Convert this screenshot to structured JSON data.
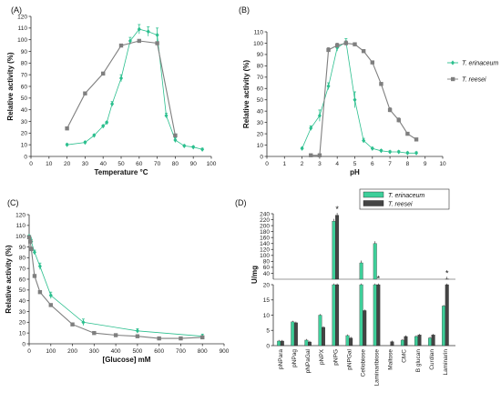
{
  "colors": {
    "erinaceum": "#2bbf8e",
    "reesei": "#7f7f7f",
    "erinaceum_bar": "#3ecf9a",
    "reesei_bar": "#444444"
  },
  "chart_data": [
    {
      "id": "A",
      "panel_label": "(A)",
      "type": "line",
      "xlabel": "Temperature °C",
      "ylabel": "Relative activity (%)",
      "xlim": [
        0,
        100
      ],
      "ylim": [
        0,
        120
      ],
      "xticks": [
        0,
        10,
        20,
        30,
        40,
        50,
        60,
        70,
        80,
        90,
        100
      ],
      "yticks": [
        0,
        10,
        20,
        30,
        40,
        50,
        60,
        70,
        80,
        90,
        100,
        110,
        120
      ],
      "series": [
        {
          "key": "erinaceum",
          "marker": "diamond",
          "x": [
            20,
            30,
            35,
            40,
            42,
            45,
            50,
            55,
            60,
            65,
            70,
            75,
            80,
            85,
            90,
            95
          ],
          "y": [
            10,
            12,
            18,
            26,
            29,
            45,
            67,
            99,
            109,
            107,
            104,
            35,
            14,
            9,
            8,
            6
          ],
          "err": [
            1,
            1,
            1,
            1,
            1,
            2,
            3,
            3,
            4,
            4,
            6,
            2,
            2,
            1,
            1,
            1
          ]
        },
        {
          "key": "reesei",
          "marker": "square",
          "x": [
            20,
            30,
            40,
            50,
            60,
            70,
            80
          ],
          "y": [
            24,
            54,
            71,
            95,
            99,
            97,
            18
          ],
          "err": [
            1,
            1,
            1,
            1,
            1,
            1,
            1
          ]
        }
      ]
    },
    {
      "id": "B",
      "panel_label": "(B)",
      "type": "line",
      "xlabel": "pH",
      "ylabel": "Relative activity (%)",
      "xlim": [
        0,
        10
      ],
      "ylim": [
        0,
        110
      ],
      "xticks": [
        0,
        1,
        2,
        3,
        4,
        5,
        6,
        7,
        8,
        9,
        10
      ],
      "yticks": [
        0,
        10,
        20,
        30,
        40,
        50,
        60,
        70,
        80,
        90,
        100,
        110
      ],
      "legend": [
        "T. erinaceum",
        "T. reesei"
      ],
      "series": [
        {
          "key": "erinaceum",
          "marker": "diamond",
          "x": [
            2,
            2.5,
            3,
            3.5,
            4,
            4.5,
            5,
            5.5,
            6,
            6.5,
            7,
            7.5,
            8,
            8.5
          ],
          "y": [
            7,
            25,
            36,
            62,
            96,
            101,
            50,
            14,
            7,
            5,
            4,
            4,
            3,
            3
          ],
          "err": [
            1,
            2,
            5,
            3,
            3,
            3,
            7,
            2,
            1,
            1,
            1,
            1,
            1,
            1
          ]
        },
        {
          "key": "reesei",
          "marker": "square",
          "x": [
            2.5,
            3,
            3.5,
            4,
            4.5,
            5,
            5.5,
            6,
            6.5,
            7,
            7.5,
            8,
            8.5
          ],
          "y": [
            1,
            1,
            94,
            98,
            100,
            99,
            93,
            83,
            64,
            41,
            32,
            20,
            15
          ],
          "err": [
            1,
            1,
            2,
            2,
            2,
            1,
            1,
            1,
            1,
            2,
            2,
            1,
            1
          ]
        }
      ]
    },
    {
      "id": "C",
      "panel_label": "(C)",
      "type": "line",
      "xlabel": "[Glucose] mM",
      "ylabel": "Relative activity (%)",
      "xlim": [
        0,
        900
      ],
      "ylim": [
        0,
        120
      ],
      "xticks": [
        0,
        100,
        200,
        300,
        400,
        500,
        600,
        700,
        800,
        900
      ],
      "yticks": [
        0,
        10,
        20,
        30,
        40,
        50,
        60,
        70,
        80,
        90,
        100,
        110,
        120
      ],
      "series": [
        {
          "key": "erinaceum",
          "marker": "diamond",
          "x": [
            0,
            5,
            10,
            25,
            50,
            100,
            250,
            500,
            800
          ],
          "y": [
            100,
            98,
            95,
            85,
            72,
            45,
            20,
            12,
            7
          ],
          "err": [
            1,
            1,
            2,
            2,
            3,
            3,
            3,
            2,
            2
          ]
        },
        {
          "key": "reesei",
          "marker": "square",
          "x": [
            0,
            5,
            10,
            25,
            50,
            100,
            200,
            300,
            400,
            500,
            600,
            700,
            800
          ],
          "y": [
            99,
            95,
            88,
            63,
            48,
            36,
            18,
            10,
            8,
            7,
            5,
            5,
            6
          ],
          "err": [
            1,
            1,
            2,
            1,
            1,
            1,
            1,
            1,
            1,
            1,
            1,
            1,
            1
          ]
        }
      ]
    },
    {
      "id": "D",
      "panel_label": "(D)",
      "type": "bar",
      "ylabel": "U/mg",
      "legend": [
        "T. erinaceum",
        "T. reesei"
      ],
      "categories": [
        "pNPara",
        "pNPag",
        "pNPaGal",
        "pNPX",
        "pNPG",
        "pNPGal",
        "Cellobiose",
        "Laminaribiose",
        "Maltose",
        "CMC",
        "B glucan",
        "Curdlan",
        "Laminarin"
      ],
      "broken_axis": {
        "lower_range": [
          0,
          20
        ],
        "upper_range": [
          20,
          240
        ]
      },
      "yticks_lower": [
        0,
        5,
        10,
        15,
        20
      ],
      "yticks_upper": [
        20,
        40,
        60,
        80,
        100,
        120,
        140,
        160,
        180,
        200,
        220,
        240
      ],
      "significant_star": "*",
      "significant_categories": [
        "pNPG",
        "Laminaribiose",
        "Laminarin"
      ],
      "series": [
        {
          "key": "erinaceum",
          "values": [
            1.5,
            7.8,
            1.8,
            10,
            215,
            3.3,
            75,
            140,
            0,
            1.8,
            3,
            2.5,
            13
          ]
        },
        {
          "key": "reesei",
          "values": [
            1.5,
            7.5,
            1.2,
            6,
            235,
            2.5,
            11.5,
            20,
            1.3,
            3,
            3.5,
            3.5,
            20.5
          ]
        }
      ]
    }
  ]
}
